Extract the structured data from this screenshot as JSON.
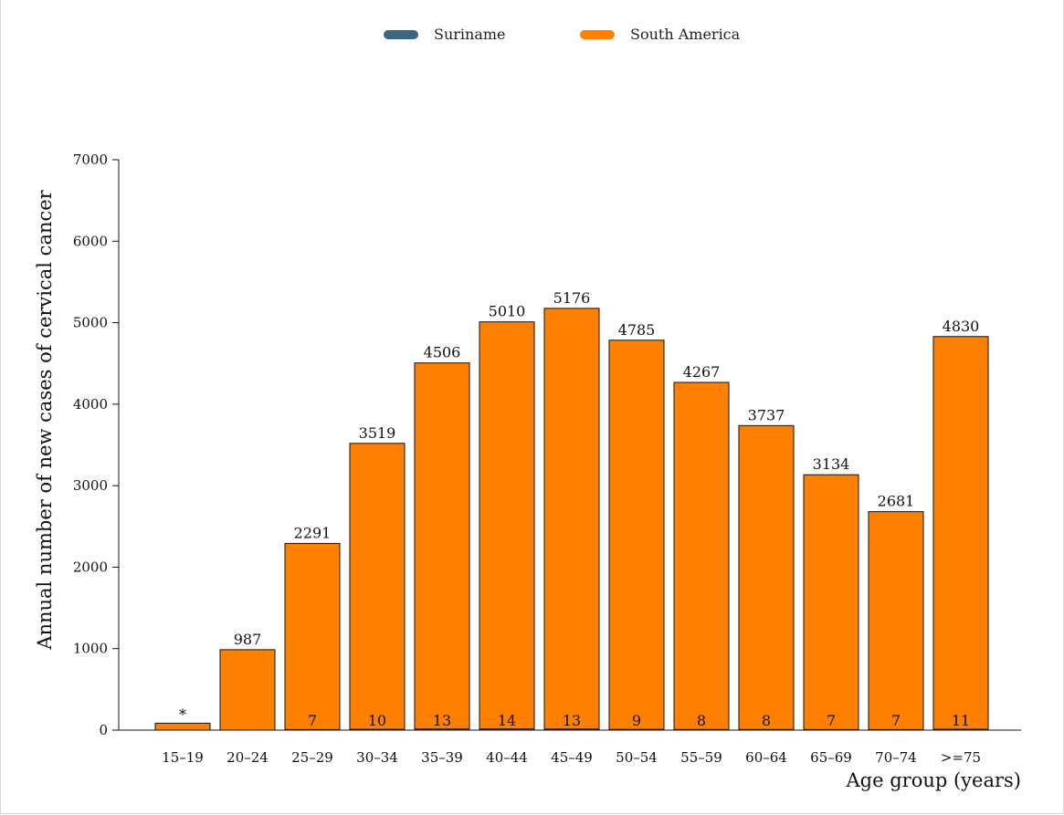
{
  "chart_data": {
    "type": "bar",
    "xlabel": "Age group (years)",
    "ylabel": "Annual number of new cases of cervical cancer",
    "ylim": [
      0,
      7000
    ],
    "yticks": [
      "0",
      "1000",
      "2000",
      "3000",
      "4000",
      "5000",
      "6000",
      "7000"
    ],
    "categories": [
      "15–19",
      "20–24",
      "25–29",
      "30–34",
      "35–39",
      "40–44",
      "45–49",
      "50–54",
      "55–59",
      "60–64",
      "65–69",
      "70–74",
      ">=75"
    ],
    "series": [
      {
        "name": "Suriname",
        "color": "#3d6480",
        "values": [
          null,
          null,
          7,
          10,
          13,
          14,
          13,
          9,
          8,
          8,
          7,
          7,
          11
        ],
        "labels": [
          "*",
          "",
          "7",
          "10",
          "13",
          "14",
          "13",
          "9",
          "8",
          "8",
          "7",
          "7",
          "11"
        ]
      },
      {
        "name": "South America",
        "color": "#ff8000",
        "values": [
          85,
          987,
          2291,
          3519,
          4506,
          5010,
          5176,
          4785,
          4267,
          3737,
          3134,
          2681,
          4830
        ],
        "labels": [
          "",
          "987",
          "2291",
          "3519",
          "4506",
          "5010",
          "5176",
          "4785",
          "4267",
          "3737",
          "3134",
          "2681",
          "4830"
        ]
      }
    ],
    "legend_position": "top-center",
    "grid": false
  }
}
